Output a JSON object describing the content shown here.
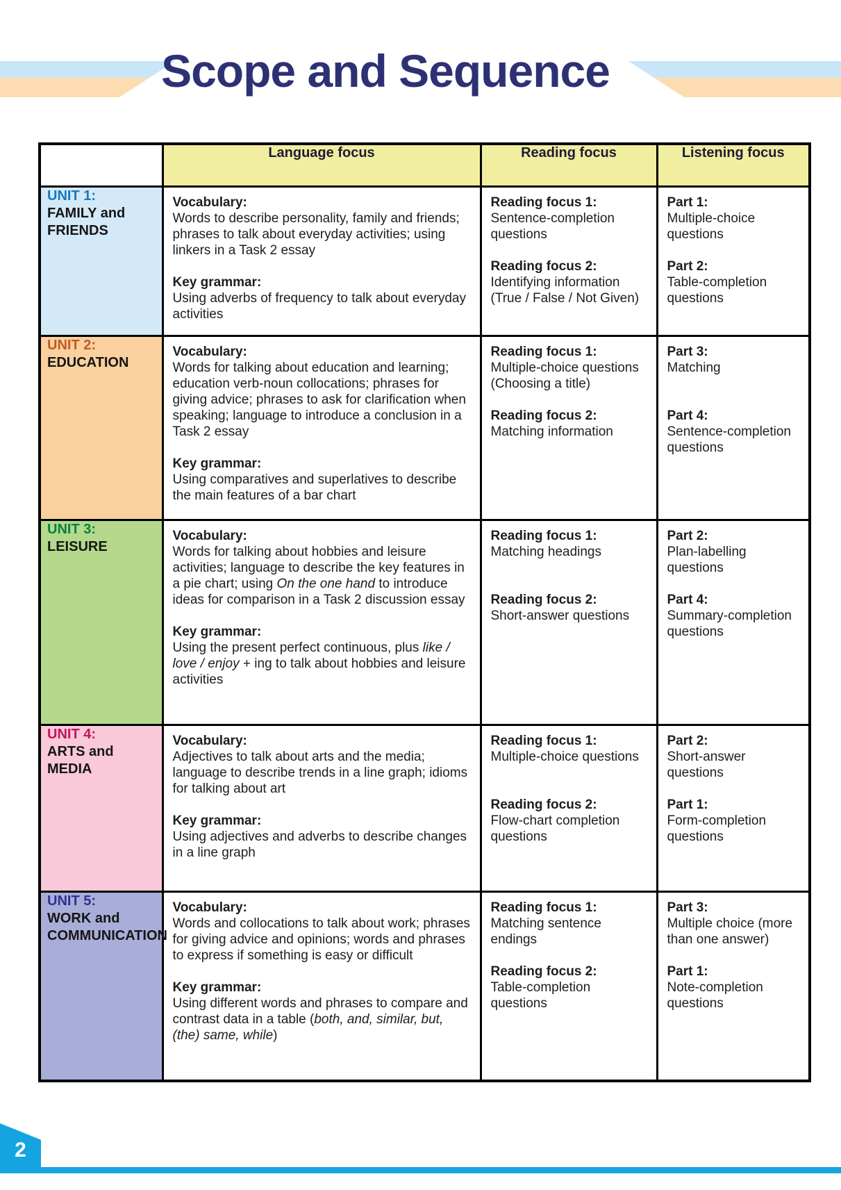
{
  "page": {
    "title": "Scope and Sequence",
    "page_number": "2"
  },
  "colors": {
    "title": "#2d3174",
    "stripe_blue": "#c9e5f8",
    "stripe_peach": "#fcdcb0",
    "header_bg": "#f1ee9f",
    "footer_cyan": "#14a5e0"
  },
  "table": {
    "headers": [
      "Language focus",
      "Reading focus",
      "Listening focus"
    ],
    "rows": [
      {
        "unit": {
          "label": "UNIT 1:",
          "name": "FAMILY and FRIENDS",
          "bg": "#d4e9f8",
          "color": "#1778bd"
        },
        "language": [
          {
            "heading": "Vocabulary:",
            "body": [
              {
                "t": "Words to describe personality, family and friends; phrases to talk about everyday activities; using linkers in a Task 2 essay"
              }
            ]
          },
          {
            "heading": "Key grammar:",
            "body": [
              {
                "t": "Using adverbs of frequency to talk about everyday activities"
              }
            ]
          }
        ],
        "reading": [
          {
            "heading": "Reading focus 1:",
            "body": [
              {
                "t": "Sentence-completion questions"
              }
            ]
          },
          {
            "heading": "Reading focus 2:",
            "body": [
              {
                "t": "Identifying information (True / False / Not Given)"
              }
            ]
          }
        ],
        "listening": [
          {
            "heading": "Part 1:",
            "body": [
              {
                "t": "Multiple-choice questions"
              }
            ]
          },
          {
            "heading": "Part 2:",
            "body": [
              {
                "t": "Table-completion questions"
              }
            ]
          }
        ]
      },
      {
        "unit": {
          "label": "UNIT 2:",
          "name": "EDUCATION",
          "bg": "#f9d09e",
          "color": "#c05a28"
        },
        "language": [
          {
            "heading": "Vocabulary:",
            "body": [
              {
                "t": "Words for talking about education and learning; education verb-noun collocations; phrases for giving advice; phrases to ask for clarification when speaking; language to introduce a conclusion in a Task 2 essay"
              }
            ]
          },
          {
            "heading": "Key grammar:",
            "body": [
              {
                "t": "Using comparatives and superlatives to describe the main features of a bar chart"
              }
            ]
          }
        ],
        "reading": [
          {
            "heading": "Reading focus 1:",
            "body": [
              {
                "t": "Multiple-choice questions (Choosing a title)"
              }
            ]
          },
          {
            "heading": "Reading focus 2:",
            "body": [
              {
                "t": "Matching information"
              }
            ]
          }
        ],
        "listening": [
          {
            "heading": "Part 3:",
            "body": [
              {
                "t": "Matching"
              }
            ]
          },
          {
            "heading": "Part 4:",
            "body": [
              {
                "t": "Sentence-completion questions"
              }
            ]
          }
        ]
      },
      {
        "unit": {
          "label": "UNIT 3:",
          "name": "LEISURE",
          "bg": "#b5d88c",
          "color": "#00843f"
        },
        "language": [
          {
            "heading": "Vocabulary:",
            "body": [
              {
                "t": "Words for talking about hobbies and leisure activities; language to describe the key features in a pie chart; using "
              },
              {
                "t": "On the one hand",
                "i": true
              },
              {
                "t": " to introduce ideas for comparison in a Task 2 discussion essay"
              }
            ]
          },
          {
            "heading": "Key grammar:",
            "body": [
              {
                "t": "Using the present perfect continuous, plus "
              },
              {
                "t": "like / love / enjoy",
                "i": true
              },
              {
                "t": " + ing to talk about hobbies and leisure activities"
              }
            ]
          }
        ],
        "reading": [
          {
            "heading": "Reading focus 1:",
            "body": [
              {
                "t": "Matching headings"
              }
            ]
          },
          {
            "heading": "Reading focus 2:",
            "body": [
              {
                "t": "Short-answer questions"
              }
            ]
          }
        ],
        "listening": [
          {
            "heading": "Part 2:",
            "body": [
              {
                "t": "Plan-labelling questions"
              }
            ]
          },
          {
            "heading": "Part 4:",
            "body": [
              {
                "t": "Summary-completion questions"
              }
            ]
          }
        ]
      },
      {
        "unit": {
          "label": "UNIT 4:",
          "name": "ARTS and MEDIA",
          "bg": "#f9c9d9",
          "color": "#c4135e"
        },
        "language": [
          {
            "heading": "Vocabulary:",
            "body": [
              {
                "t": "Adjectives to talk about arts and the media; language to describe trends in a line graph; idioms for talking about art"
              }
            ]
          },
          {
            "heading": "Key grammar:",
            "body": [
              {
                "t": "Using adjectives and adverbs to describe changes in a line graph"
              }
            ]
          }
        ],
        "reading": [
          {
            "heading": "Reading focus 1:",
            "body": [
              {
                "t": "Multiple-choice questions"
              }
            ]
          },
          {
            "heading": "Reading focus 2:",
            "body": [
              {
                "t": "Flow-chart completion questions"
              }
            ]
          }
        ],
        "listening": [
          {
            "heading": "Part 2:",
            "body": [
              {
                "t": "Short-answer questions"
              }
            ]
          },
          {
            "heading": "Part 1:",
            "body": [
              {
                "t": "Form-completion questions"
              }
            ]
          }
        ]
      },
      {
        "unit": {
          "label": "UNIT 5:",
          "name": "WORK and COMMUNICATION",
          "bg": "#a9aed9",
          "color": "#303193"
        },
        "language": [
          {
            "heading": "Vocabulary:",
            "body": [
              {
                "t": "Words and collocations to talk about work; phrases for giving advice and opinions; words and phrases to express if something is easy or difficult"
              }
            ]
          },
          {
            "heading": "Key grammar:",
            "body": [
              {
                "t": "Using different words and phrases to compare and contrast data in a table ("
              },
              {
                "t": "both, and, similar, but, (the) same, while",
                "i": true
              },
              {
                "t": ")"
              }
            ]
          }
        ],
        "reading": [
          {
            "heading": "Reading focus 1:",
            "body": [
              {
                "t": "Matching sentence endings"
              }
            ]
          },
          {
            "heading": "Reading focus 2:",
            "body": [
              {
                "t": "Table-completion questions"
              }
            ]
          }
        ],
        "listening": [
          {
            "heading": "Part 3:",
            "body": [
              {
                "t": "Multiple choice (more than one answer)"
              }
            ]
          },
          {
            "heading": "Part 1:",
            "body": [
              {
                "t": "Note-completion questions"
              }
            ]
          }
        ]
      }
    ]
  }
}
